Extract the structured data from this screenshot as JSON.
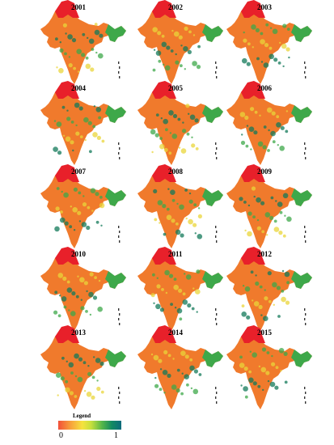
{
  "panels": [
    {
      "year": "2001"
    },
    {
      "year": "2002"
    },
    {
      "year": "2003"
    },
    {
      "year": "2004"
    },
    {
      "year": "2005"
    },
    {
      "year": "2006"
    },
    {
      "year": "2007"
    },
    {
      "year": "2008"
    },
    {
      "year": "2009"
    },
    {
      "year": "2010"
    },
    {
      "year": "2011"
    },
    {
      "year": "2012"
    },
    {
      "year": "2013"
    },
    {
      "year": "2014"
    },
    {
      "year": "2015"
    }
  ],
  "legend": {
    "title": "Legend",
    "min_label": "0",
    "max_label": "1",
    "colors": [
      "#f2503a",
      "#f7a23b",
      "#f6e23e",
      "#c7e03d",
      "#52b54a",
      "#138a62",
      "#0d6b7c"
    ]
  },
  "map_colors": {
    "north": "#e8202a",
    "main": "#f07a2c",
    "green": "#3ea84a",
    "dark": "#137a5a",
    "yellow": "#e9d63a"
  }
}
